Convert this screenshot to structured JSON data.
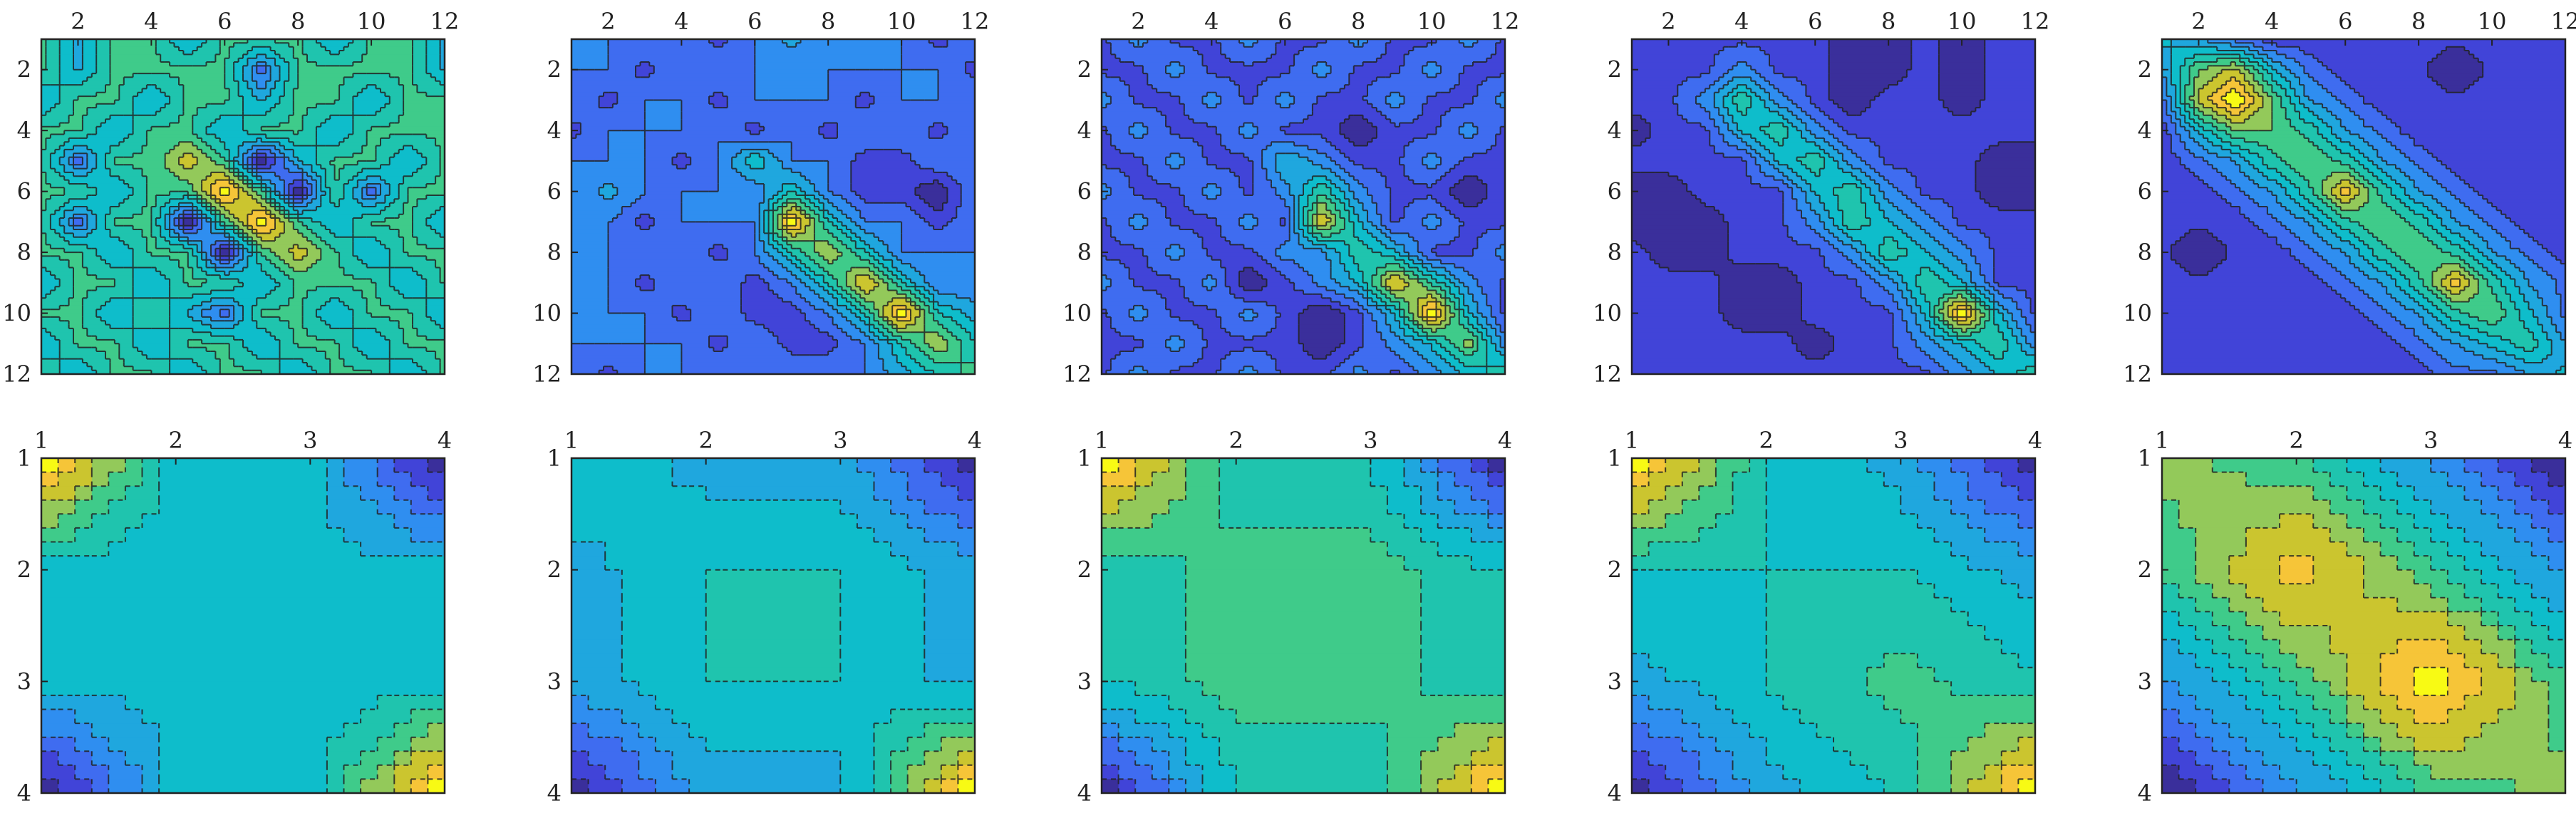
{
  "colors": {
    "levels": [
      "#3a2f9b",
      "#4144d8",
      "#3f6cf0",
      "#2f8ef0",
      "#1fa7de",
      "#0ebdcb",
      "#1fc4ae",
      "#3fcb8a",
      "#93c95a",
      "#cbc52f",
      "#f6c538",
      "#f8fa14"
    ]
  },
  "chart_data": [
    {
      "type": "contour",
      "xlim": [
        1,
        12
      ],
      "ylim": [
        1,
        12
      ],
      "y_reversed": true,
      "xticks": [
        "2",
        "4",
        "6",
        "8",
        "10",
        "12"
      ],
      "yticks": [
        "2",
        "4",
        "6",
        "8",
        "10",
        "12"
      ],
      "z": [
        [
          4,
          3,
          4,
          4,
          3,
          4,
          4,
          4,
          3,
          4,
          4,
          3
        ],
        [
          4,
          3,
          4,
          4,
          4,
          4,
          2,
          4,
          4,
          4,
          4,
          3
        ],
        [
          3,
          4,
          4,
          3,
          4,
          4,
          3,
          4,
          4,
          3,
          4,
          4
        ],
        [
          4,
          4,
          3,
          4,
          4,
          3,
          4,
          4,
          3,
          4,
          4,
          4
        ],
        [
          4,
          2,
          4,
          4,
          5,
          4,
          1,
          3,
          4,
          4,
          3,
          4
        ],
        [
          4,
          4,
          3,
          4,
          4,
          6,
          4,
          1,
          4,
          2,
          4,
          4
        ],
        [
          4,
          2,
          4,
          4,
          1,
          4,
          6,
          4,
          3,
          4,
          4,
          3
        ],
        [
          4,
          4,
          3,
          4,
          4,
          1,
          4,
          5,
          4,
          3,
          4,
          4
        ],
        [
          3,
          4,
          4,
          3,
          4,
          4,
          3,
          4,
          4,
          4,
          3,
          4
        ],
        [
          4,
          4,
          3,
          4,
          3,
          2,
          4,
          4,
          3,
          4,
          4,
          3
        ],
        [
          3,
          4,
          4,
          3,
          4,
          4,
          3,
          4,
          4,
          3,
          4,
          4
        ],
        [
          4,
          3,
          4,
          4,
          3,
          4,
          4,
          3,
          4,
          4,
          3,
          4
        ]
      ]
    },
    {
      "type": "contour",
      "xlim": [
        1,
        12
      ],
      "ylim": [
        1,
        12
      ],
      "y_reversed": true,
      "xticks": [
        "2",
        "4",
        "6",
        "8",
        "10",
        "12"
      ],
      "yticks": [
        "2",
        "4",
        "6",
        "8",
        "10",
        "12"
      ],
      "z": [
        [
          4,
          4,
          4,
          4,
          3,
          4,
          5,
          4,
          4,
          4,
          3,
          4
        ],
        [
          4,
          4,
          3,
          4,
          4,
          4,
          4,
          4,
          4,
          4,
          4,
          3
        ],
        [
          4,
          3,
          4,
          4,
          3,
          4,
          4,
          4,
          3,
          4,
          4,
          4
        ],
        [
          3,
          4,
          4,
          4,
          4,
          3,
          4,
          3,
          4,
          4,
          3,
          4
        ],
        [
          4,
          4,
          4,
          3,
          4,
          6,
          4,
          4,
          3,
          3,
          4,
          4
        ],
        [
          4,
          5,
          4,
          4,
          4,
          4,
          6,
          4,
          3,
          3,
          2,
          4
        ],
        [
          4,
          4,
          3,
          4,
          4,
          4,
          10,
          6,
          4,
          4,
          3,
          4
        ],
        [
          4,
          4,
          4,
          4,
          3,
          4,
          6,
          8,
          6,
          4,
          4,
          4
        ],
        [
          4,
          4,
          3,
          4,
          4,
          3,
          4,
          6,
          9,
          6,
          4,
          4
        ],
        [
          4,
          4,
          4,
          3,
          4,
          3,
          3,
          4,
          6,
          10,
          6,
          5
        ],
        [
          4,
          4,
          4,
          4,
          3,
          4,
          3,
          3,
          4,
          6,
          8,
          6
        ],
        [
          4,
          3,
          4,
          4,
          4,
          4,
          4,
          4,
          4,
          5,
          6,
          7
        ]
      ]
    },
    {
      "type": "contour",
      "xlim": [
        1,
        12
      ],
      "ylim": [
        1,
        12
      ],
      "y_reversed": true,
      "xticks": [
        "2",
        "4",
        "6",
        "8",
        "10",
        "12"
      ],
      "yticks": [
        "2",
        "4",
        "6",
        "8",
        "10",
        "12"
      ],
      "z": [
        [
          3,
          4,
          3,
          3,
          4,
          3,
          3,
          4,
          3,
          3,
          4,
          3
        ],
        [
          3,
          3,
          4,
          3,
          3,
          3,
          4,
          3,
          3,
          4,
          3,
          3
        ],
        [
          4,
          3,
          3,
          4,
          3,
          4,
          3,
          3,
          4,
          3,
          3,
          4
        ],
        [
          3,
          4,
          3,
          3,
          4,
          3,
          3,
          2,
          3,
          3,
          4,
          3
        ],
        [
          3,
          3,
          4,
          3,
          3,
          5,
          4,
          3,
          3,
          4,
          3,
          3
        ],
        [
          4,
          3,
          3,
          4,
          3,
          4,
          6,
          4,
          3,
          3,
          2,
          3
        ],
        [
          3,
          4,
          3,
          3,
          4,
          3,
          8,
          5,
          3,
          4,
          3,
          3
        ],
        [
          3,
          3,
          4,
          3,
          3,
          4,
          4,
          6,
          5,
          3,
          3,
          4
        ],
        [
          4,
          3,
          3,
          4,
          2,
          3,
          4,
          5,
          8,
          6,
          4,
          3
        ],
        [
          3,
          4,
          3,
          3,
          4,
          3,
          2,
          3,
          5,
          9,
          5,
          3
        ],
        [
          3,
          3,
          4,
          3,
          3,
          3,
          2,
          3,
          4,
          5,
          7,
          4
        ],
        [
          3,
          4,
          3,
          3,
          4,
          3,
          3,
          4,
          3,
          4,
          5,
          6
        ]
      ]
    },
    {
      "type": "contour",
      "xlim": [
        1,
        12
      ],
      "ylim": [
        1,
        12
      ],
      "y_reversed": true,
      "xticks": [
        "2",
        "4",
        "6",
        "8",
        "10",
        "12"
      ],
      "yticks": [
        "2",
        "4",
        "6",
        "8",
        "10",
        "12"
      ],
      "z": [
        [
          3,
          3,
          3,
          3,
          3,
          3,
          2,
          2,
          3,
          2,
          3,
          3
        ],
        [
          3,
          3,
          3,
          4,
          3,
          3,
          2,
          2,
          3,
          2,
          3,
          3
        ],
        [
          3,
          3,
          4,
          6,
          4,
          3,
          2,
          3,
          3,
          2,
          3,
          3
        ],
        [
          2,
          3,
          3,
          5,
          6,
          4,
          3,
          3,
          3,
          3,
          3,
          3
        ],
        [
          3,
          3,
          3,
          3,
          5,
          6,
          4,
          3,
          3,
          3,
          2,
          2
        ],
        [
          2,
          2,
          3,
          3,
          3,
          5,
          6,
          4,
          3,
          3,
          2,
          2
        ],
        [
          2,
          2,
          2,
          3,
          3,
          4,
          6,
          5,
          4,
          3,
          3,
          3
        ],
        [
          3,
          2,
          2,
          3,
          3,
          3,
          4,
          6,
          5,
          4,
          3,
          3
        ],
        [
          3,
          3,
          3,
          2,
          2,
          3,
          3,
          4,
          6,
          5,
          3,
          3
        ],
        [
          3,
          3,
          3,
          2,
          2,
          3,
          3,
          3,
          5,
          9,
          5,
          3
        ],
        [
          3,
          3,
          3,
          3,
          3,
          2,
          3,
          3,
          4,
          5,
          6,
          4
        ],
        [
          3,
          3,
          3,
          3,
          3,
          3,
          3,
          3,
          3,
          4,
          5,
          6
        ]
      ]
    },
    {
      "type": "contour",
      "xlim": [
        1,
        12
      ],
      "ylim": [
        1,
        12
      ],
      "y_reversed": true,
      "xticks": [
        "2",
        "4",
        "6",
        "8",
        "10",
        "12"
      ],
      "yticks": [
        "2",
        "4",
        "6",
        "8",
        "10",
        "12"
      ],
      "z": [
        [
          5,
          4,
          3,
          2,
          2,
          2,
          2,
          2,
          2,
          2,
          2,
          2
        ],
        [
          4,
          7,
          8,
          5,
          3,
          2,
          2,
          2,
          1,
          2,
          2,
          2
        ],
        [
          3,
          8,
          10,
          7,
          4,
          3,
          2,
          2,
          2,
          2,
          2,
          2
        ],
        [
          2,
          5,
          7,
          7,
          6,
          4,
          3,
          2,
          2,
          2,
          2,
          2
        ],
        [
          2,
          3,
          4,
          6,
          7,
          6,
          4,
          3,
          2,
          2,
          2,
          2
        ],
        [
          2,
          2,
          3,
          4,
          6,
          9,
          6,
          4,
          3,
          2,
          2,
          2
        ],
        [
          2,
          2,
          2,
          3,
          4,
          6,
          7,
          6,
          4,
          3,
          2,
          2
        ],
        [
          2,
          1,
          2,
          2,
          3,
          4,
          6,
          7,
          6,
          4,
          3,
          2
        ],
        [
          2,
          2,
          2,
          2,
          2,
          3,
          4,
          6,
          9,
          6,
          4,
          3
        ],
        [
          2,
          2,
          2,
          2,
          2,
          2,
          3,
          4,
          6,
          7,
          5,
          3
        ],
        [
          2,
          2,
          2,
          2,
          2,
          2,
          2,
          3,
          4,
          5,
          6,
          4
        ],
        [
          2,
          2,
          2,
          2,
          2,
          2,
          2,
          2,
          3,
          3,
          4,
          5
        ]
      ]
    },
    {
      "type": "contour",
      "xlim": [
        1,
        4
      ],
      "ylim": [
        1,
        4
      ],
      "y_reversed": true,
      "xticks": [
        "1",
        "2",
        "3",
        "4"
      ],
      "yticks": [
        "1",
        "2",
        "3",
        "4"
      ],
      "z": [
        [
          10,
          5,
          5,
          1
        ],
        [
          5,
          5,
          5,
          5
        ],
        [
          5,
          5,
          5,
          5
        ],
        [
          1,
          5,
          5,
          10
        ]
      ]
    },
    {
      "type": "contour",
      "xlim": [
        1,
        4
      ],
      "ylim": [
        1,
        4
      ],
      "y_reversed": true,
      "xticks": [
        "1",
        "2",
        "3",
        "4"
      ],
      "yticks": [
        "1",
        "2",
        "3",
        "4"
      ],
      "z": [
        [
          5,
          4,
          4,
          1
        ],
        [
          4,
          5,
          5,
          4
        ],
        [
          4,
          5,
          5,
          4
        ],
        [
          1,
          4,
          4,
          9
        ]
      ]
    },
    {
      "type": "contour",
      "xlim": [
        1,
        4
      ],
      "ylim": [
        1,
        4
      ],
      "y_reversed": true,
      "xticks": [
        "1",
        "2",
        "3",
        "4"
      ],
      "yticks": [
        "1",
        "2",
        "3",
        "4"
      ],
      "z": [
        [
          9,
          5,
          5,
          1
        ],
        [
          5,
          6,
          6,
          5
        ],
        [
          5,
          6,
          6,
          5
        ],
        [
          1,
          5,
          5,
          9
        ]
      ]
    },
    {
      "type": "contour",
      "xlim": [
        1,
        4
      ],
      "ylim": [
        1,
        4
      ],
      "y_reversed": true,
      "xticks": [
        "1",
        "2",
        "3",
        "4"
      ],
      "yticks": [
        "1",
        "2",
        "3",
        "4"
      ],
      "z": [
        [
          10,
          6,
          5,
          2
        ],
        [
          6,
          6,
          6,
          5
        ],
        [
          5,
          6,
          7,
          6
        ],
        [
          2,
          5,
          6,
          10
        ]
      ]
    },
    {
      "type": "contour",
      "xlim": [
        1,
        4
      ],
      "ylim": [
        1,
        4
      ],
      "y_reversed": true,
      "xticks": [
        "1",
        "2",
        "3",
        "4"
      ],
      "yticks": [
        "1",
        "2",
        "3",
        "4"
      ],
      "z": [
        [
          8,
          7,
          4,
          1
        ],
        [
          7,
          10,
          7,
          4
        ],
        [
          4,
          7,
          11,
          7
        ],
        [
          1,
          4,
          7,
          8
        ]
      ]
    }
  ]
}
